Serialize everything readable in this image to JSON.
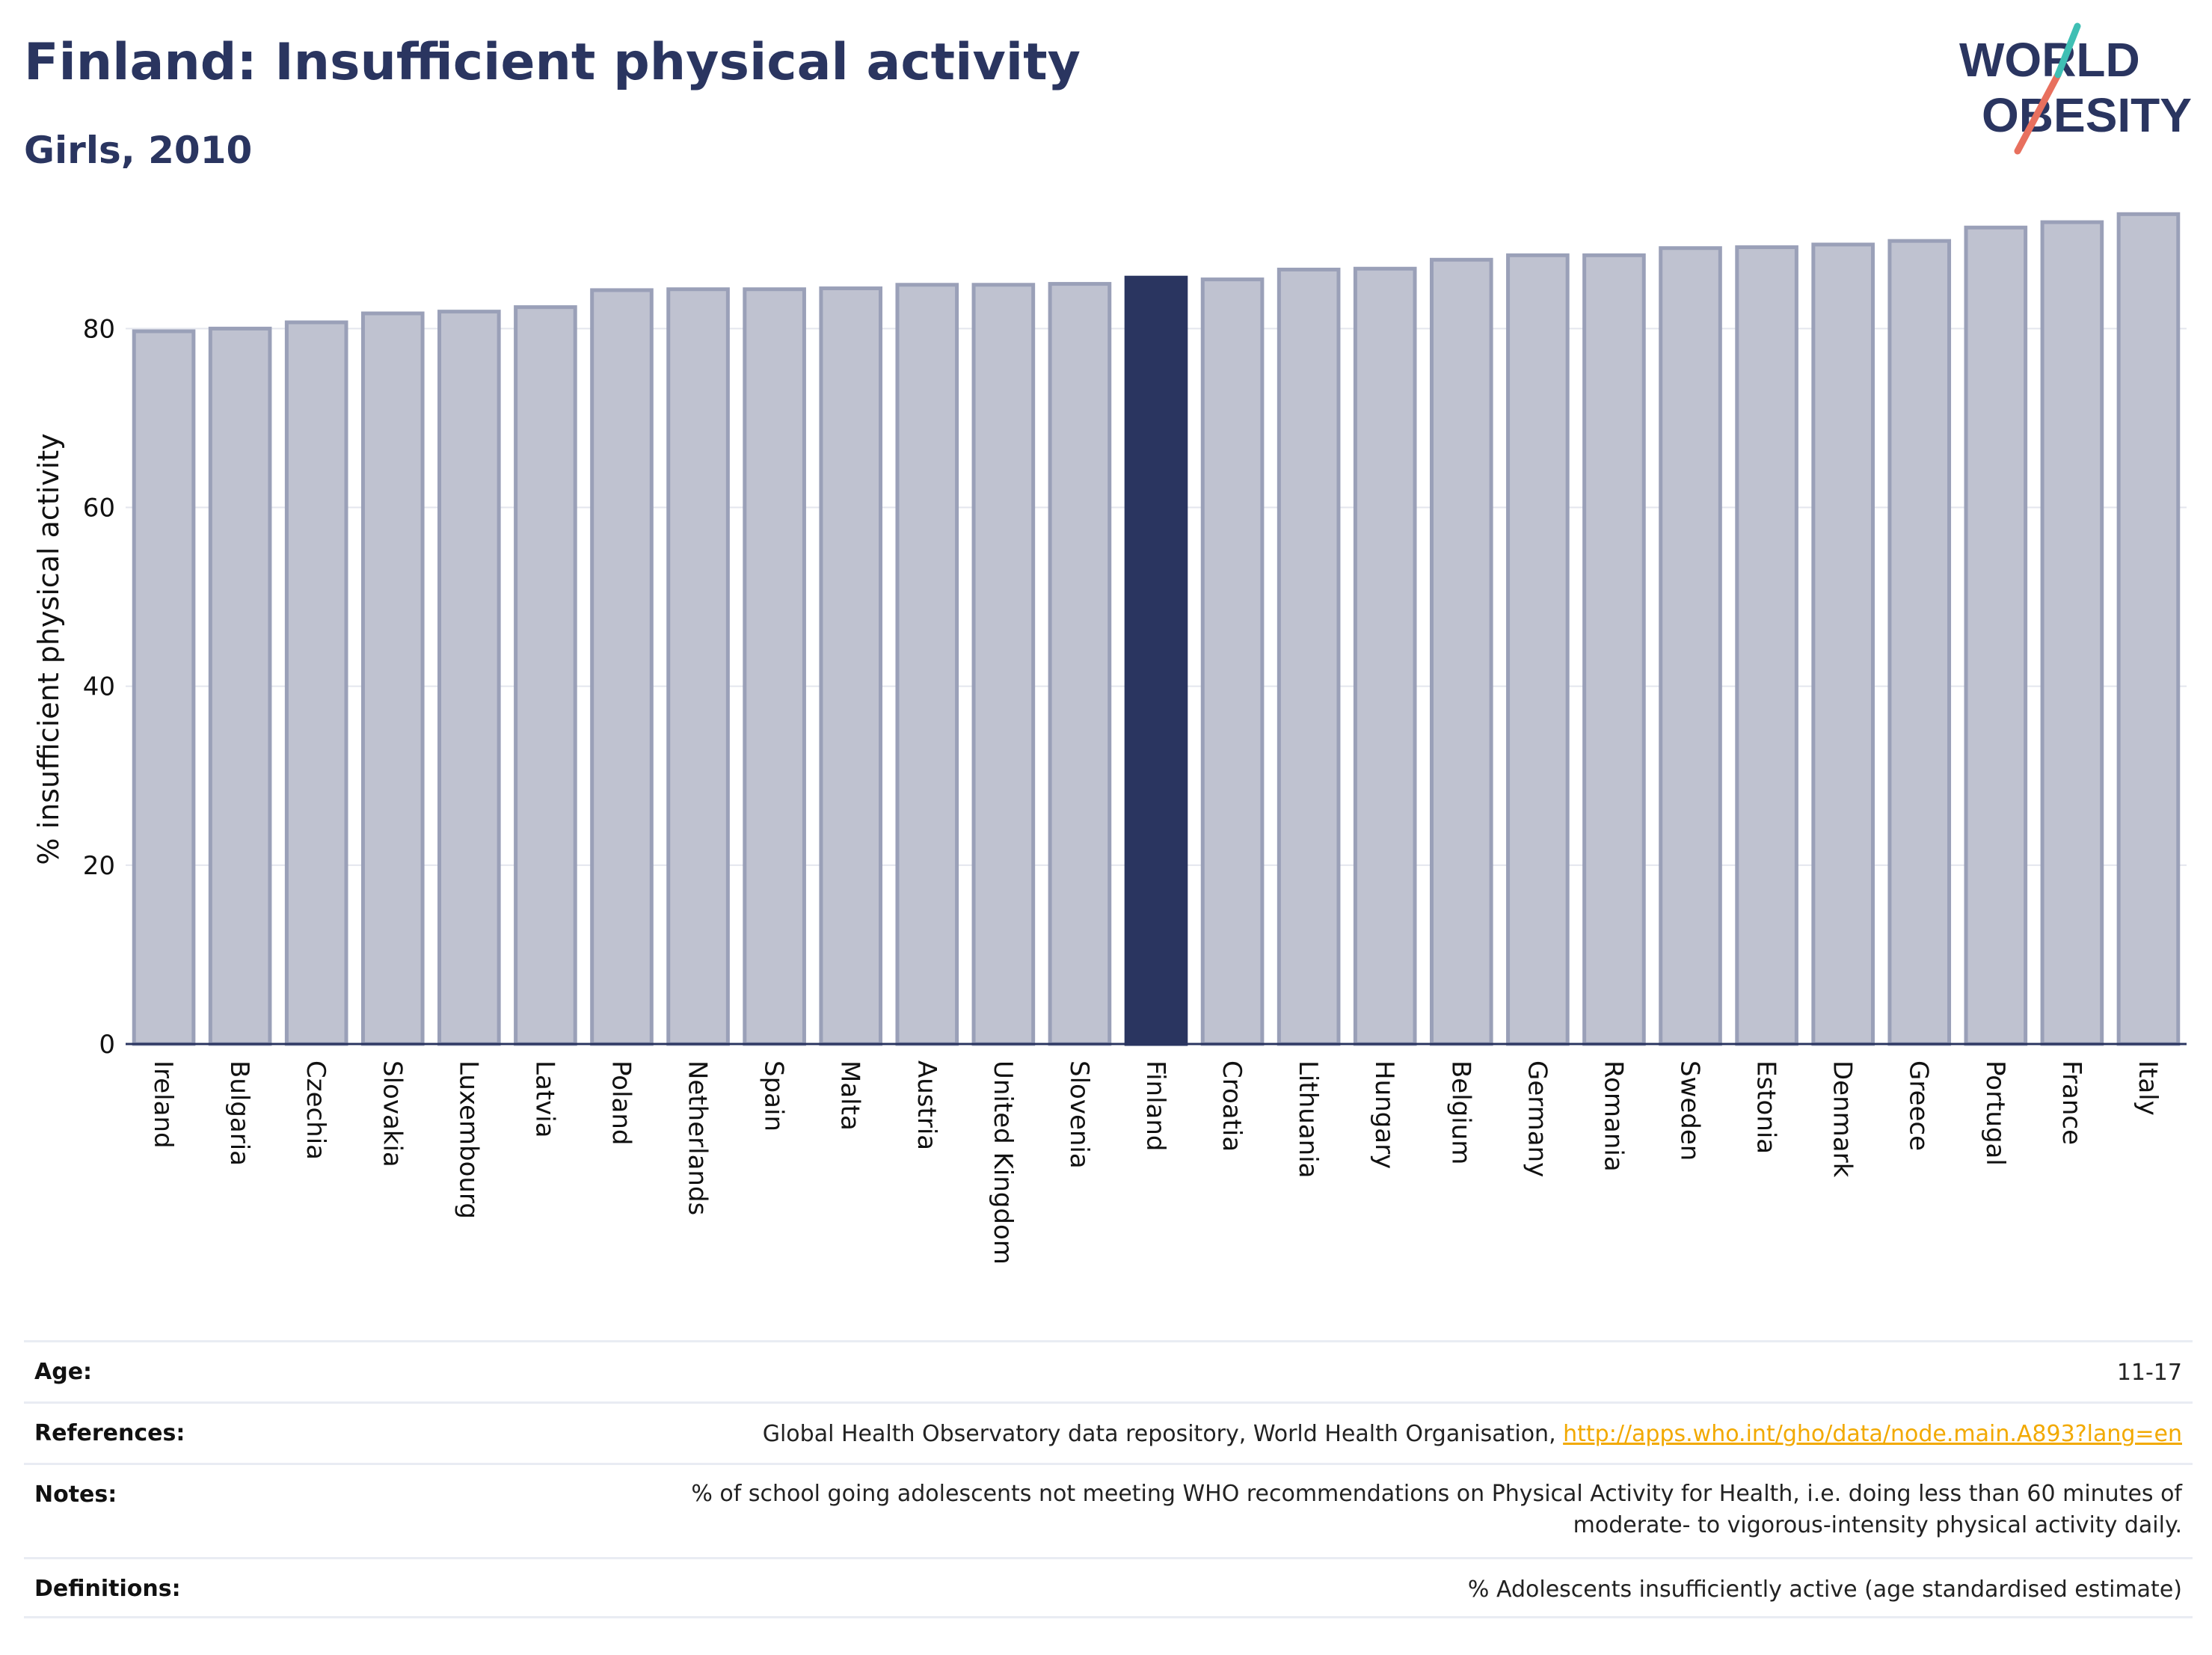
{
  "header": {
    "title": "Finland: Insufficient physical activity",
    "subtitle": "Girls, 2010"
  },
  "logo": {
    "line1": "WORLD",
    "line2": "OBESITY",
    "colors": {
      "text": "#2a3560",
      "slash_teal": "#3fbfb4",
      "slash_coral": "#e8705e"
    }
  },
  "chart_data": {
    "type": "bar",
    "title": "",
    "xlabel": "",
    "ylabel": "% insufficient physical activity",
    "ylim": [
      0,
      95
    ],
    "yticks": [
      0,
      20,
      40,
      60,
      80
    ],
    "grid": true,
    "highlight": "Finland",
    "categories": [
      "Ireland",
      "Bulgaria",
      "Czechia",
      "Slovakia",
      "Luxembourg",
      "Latvia",
      "Poland",
      "Netherlands",
      "Spain",
      "Malta",
      "Austria",
      "United Kingdom",
      "Slovenia",
      "Finland",
      "Croatia",
      "Lithuania",
      "Hungary",
      "Belgium",
      "Germany",
      "Romania",
      "Sweden",
      "Estonia",
      "Denmark",
      "Greece",
      "Portugal",
      "France",
      "Italy"
    ],
    "values": [
      79.7,
      80.0,
      80.7,
      81.7,
      81.9,
      82.4,
      84.3,
      84.4,
      84.4,
      84.5,
      84.9,
      84.9,
      85.0,
      85.7,
      85.5,
      86.6,
      86.7,
      87.7,
      88.2,
      88.2,
      89.0,
      89.1,
      89.4,
      89.8,
      91.3,
      91.9,
      92.8
    ],
    "colors": {
      "bar": "#bfc2d0",
      "bar_border": "#9aa0b8",
      "highlight": "#2a3560",
      "axis": "#2a3560",
      "grid": "#e4e6ee",
      "text": "#111111"
    }
  },
  "meta": [
    {
      "label": "Age:",
      "value": "11-17"
    },
    {
      "label": "References:",
      "value": "Global Health Observatory data repository, World Health Organisation, ",
      "link": "http://apps.who.int/gho/data/node.main.A893?lang=en"
    },
    {
      "label": "Notes:",
      "value": "% of school going adolescents not meeting WHO recommendations on Physical Activity for Health, i.e. doing less than 60 minutes of moderate- to vigorous-intensity physical activity daily."
    },
    {
      "label": "Definitions:",
      "value": "% Adolescents insufficiently active (age standardised estimate)"
    }
  ]
}
